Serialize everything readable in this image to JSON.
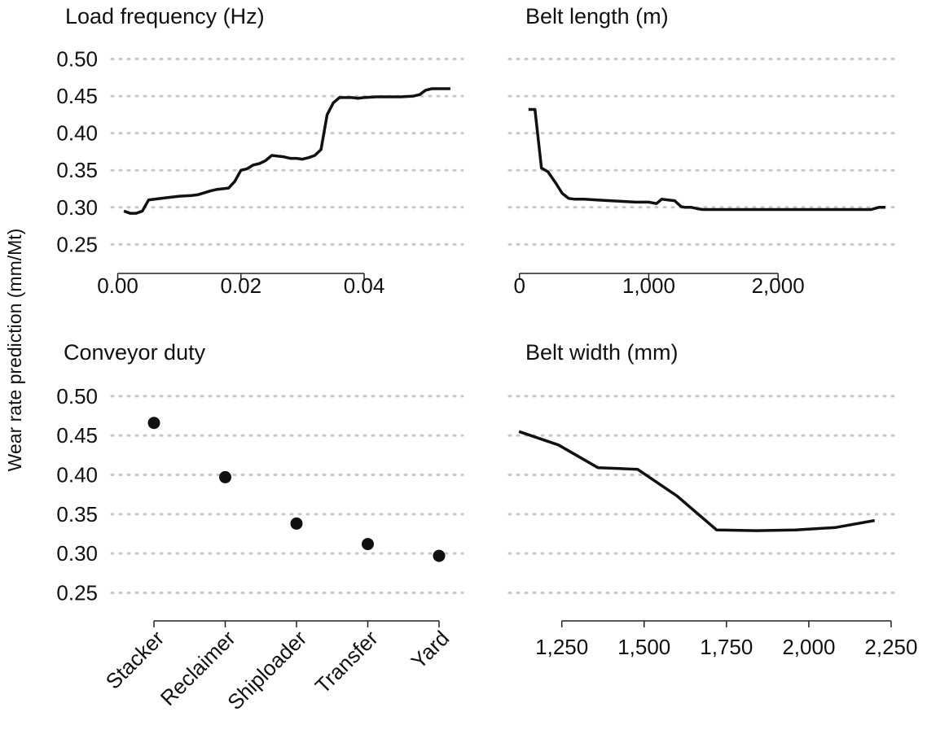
{
  "y_axis_label": "Wear rate prediction (mm/Mt)",
  "chart_data": [
    {
      "type": "line",
      "title": "Load frequency (Hz)",
      "xlim": [
        -0.001,
        0.056
      ],
      "ylim": [
        0.235,
        0.505
      ],
      "x_ticks": [
        0.0,
        0.02,
        0.04
      ],
      "x_tick_labels": [
        "0.00",
        "0.02",
        "0.04"
      ],
      "y_ticks": [
        0.25,
        0.3,
        0.35,
        0.4,
        0.45,
        0.5
      ],
      "y_tick_labels": [
        "0.25",
        "0.30",
        "0.35",
        "0.40",
        "0.45",
        "0.50"
      ],
      "grid": true,
      "x": [
        0.001,
        0.002,
        0.003,
        0.004,
        0.005,
        0.006,
        0.008,
        0.01,
        0.012,
        0.013,
        0.015,
        0.016,
        0.018,
        0.019,
        0.02,
        0.021,
        0.022,
        0.023,
        0.024,
        0.025,
        0.026,
        0.027,
        0.028,
        0.029,
        0.03,
        0.031,
        0.032,
        0.033,
        0.034,
        0.035,
        0.036,
        0.038,
        0.039,
        0.04,
        0.042,
        0.044,
        0.046,
        0.048,
        0.049,
        0.05,
        0.051,
        0.052,
        0.054
      ],
      "y": [
        0.295,
        0.292,
        0.292,
        0.295,
        0.31,
        0.311,
        0.313,
        0.315,
        0.316,
        0.317,
        0.322,
        0.324,
        0.326,
        0.335,
        0.35,
        0.352,
        0.357,
        0.359,
        0.363,
        0.37,
        0.369,
        0.368,
        0.366,
        0.366,
        0.365,
        0.367,
        0.37,
        0.378,
        0.425,
        0.441,
        0.448,
        0.448,
        0.447,
        0.448,
        0.449,
        0.449,
        0.449,
        0.45,
        0.452,
        0.458,
        0.46,
        0.46,
        0.46
      ]
    },
    {
      "type": "line",
      "title": "Belt length (m)",
      "xlim": [
        -80,
        2900
      ],
      "ylim": [
        0.235,
        0.505
      ],
      "x_ticks": [
        0,
        1000,
        2000
      ],
      "x_tick_labels": [
        "0",
        "1,000",
        "2,000"
      ],
      "y_ticks": [
        0.25,
        0.3,
        0.35,
        0.4,
        0.45,
        0.5
      ],
      "grid": true,
      "x": [
        70,
        120,
        170,
        220,
        280,
        330,
        380,
        430,
        500,
        600,
        700,
        800,
        900,
        1000,
        1060,
        1100,
        1150,
        1200,
        1250,
        1280,
        1330,
        1380,
        1420,
        1500,
        1600,
        1800,
        2000,
        2200,
        2400,
        2600,
        2720,
        2780,
        2830
      ],
      "y": [
        0.432,
        0.432,
        0.353,
        0.348,
        0.333,
        0.319,
        0.312,
        0.311,
        0.311,
        0.31,
        0.309,
        0.308,
        0.307,
        0.307,
        0.305,
        0.311,
        0.31,
        0.309,
        0.301,
        0.3,
        0.3,
        0.298,
        0.297,
        0.297,
        0.297,
        0.297,
        0.297,
        0.297,
        0.297,
        0.297,
        0.297,
        0.3,
        0.3
      ]
    },
    {
      "type": "scatter",
      "title": "Conveyor duty",
      "categories": [
        "Stacker",
        "Reclaimer",
        "Shiploader",
        "Transfer",
        "Yard"
      ],
      "values": [
        0.466,
        0.397,
        0.338,
        0.312,
        0.297
      ],
      "ylim": [
        0.235,
        0.505
      ],
      "y_ticks": [
        0.25,
        0.3,
        0.35,
        0.4,
        0.45,
        0.5
      ],
      "y_tick_labels": [
        "0.25",
        "0.30",
        "0.35",
        "0.40",
        "0.45",
        "0.50"
      ],
      "grid": true
    },
    {
      "type": "line",
      "title": "Belt width (mm)",
      "xlim": [
        1090,
        2260
      ],
      "ylim": [
        0.235,
        0.505
      ],
      "x_ticks": [
        1250,
        1500,
        1750,
        2000,
        2250
      ],
      "x_tick_labels": [
        "1,250",
        "1,500",
        "1,750",
        "2,000",
        "2,250"
      ],
      "y_ticks": [
        0.25,
        0.3,
        0.35,
        0.4,
        0.45,
        0.5
      ],
      "grid": true,
      "x": [
        1120,
        1240,
        1360,
        1480,
        1600,
        1720,
        1840,
        1960,
        2080,
        2200
      ],
      "y": [
        0.455,
        0.438,
        0.409,
        0.407,
        0.373,
        0.33,
        0.329,
        0.33,
        0.333,
        0.342
      ]
    }
  ]
}
